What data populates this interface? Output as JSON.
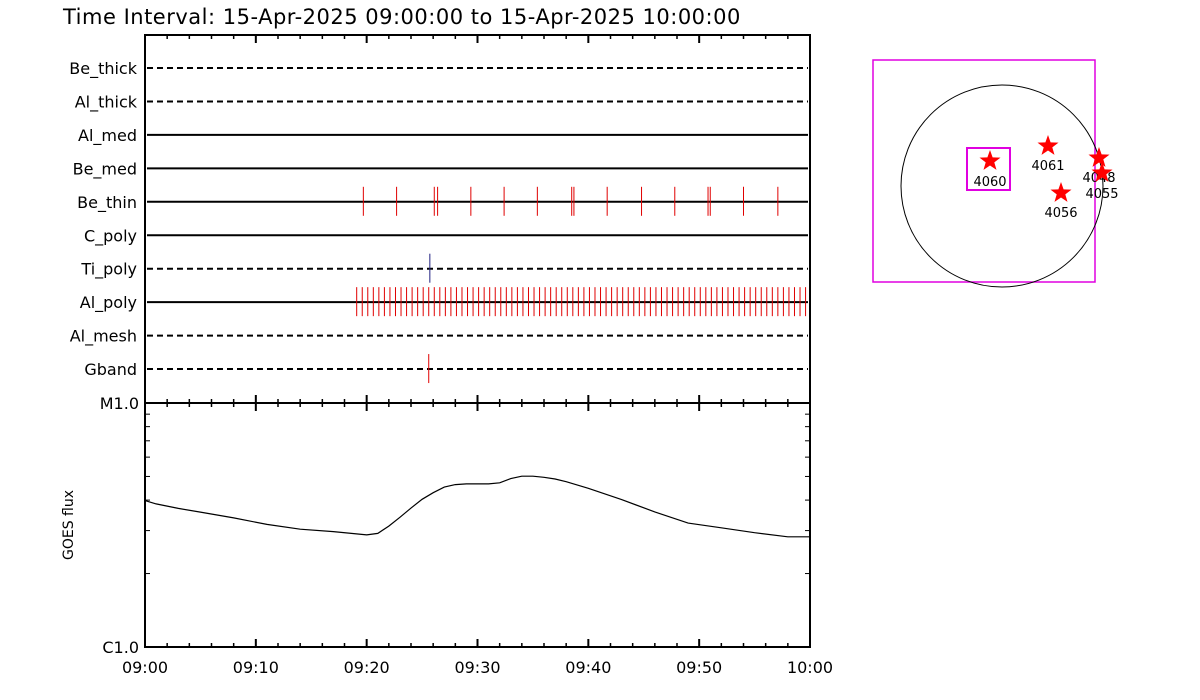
{
  "title": "Time Interval: 15-Apr-2025 09:00:00 to 15-Apr-2025 10:00:00",
  "colors": {
    "event": "#e00000",
    "ti_event": "#202080",
    "fov_box": "#e000e0",
    "star": "#ff0000",
    "axes": "#000000"
  },
  "chart_data": [
    {
      "type": "event-timeline",
      "x_unit": "minutes after 09:00",
      "xlim": [
        0,
        60
      ],
      "filters": [
        {
          "name": "Be_thick",
          "line": "dashed",
          "event_color": "event",
          "events": []
        },
        {
          "name": "Al_thick",
          "line": "dashed",
          "event_color": "event",
          "events": []
        },
        {
          "name": "Al_med",
          "line": "solid",
          "event_color": "event",
          "events": []
        },
        {
          "name": "Be_med",
          "line": "solid",
          "event_color": "event",
          "events": []
        },
        {
          "name": "Be_thin",
          "line": "solid",
          "event_color": "event",
          "events": [
            19.7,
            22.7,
            26.1,
            26.4,
            29.4,
            32.4,
            35.4,
            38.5,
            38.7,
            41.7,
            44.8,
            47.8,
            50.8,
            51.0,
            54.0,
            57.1
          ]
        },
        {
          "name": "C_poly",
          "line": "solid",
          "event_color": "event",
          "events": []
        },
        {
          "name": "Ti_poly",
          "line": "dashed",
          "event_color": "ti_event",
          "events": [
            25.7
          ]
        },
        {
          "name": "Al_poly",
          "line": "solid",
          "event_color": "event",
          "events_range": {
            "start": 19.1,
            "end": 60.0,
            "step": 0.5
          }
        },
        {
          "name": "Al_mesh",
          "line": "dashed",
          "event_color": "event",
          "events": []
        },
        {
          "name": "Gband",
          "line": "dashed",
          "event_color": "event",
          "events": [
            25.6
          ]
        }
      ]
    },
    {
      "type": "line",
      "ylabel": "GOES flux",
      "y_scale": "log",
      "y_tick_labels": [
        "C1.0",
        "M1.0"
      ],
      "ylim": [
        1e-06,
        1e-05
      ],
      "x_tick_labels": [
        "09:00",
        "09:10",
        "09:20",
        "09:30",
        "09:40",
        "09:50",
        "10:00"
      ],
      "xlim": [
        0,
        60
      ],
      "series": [
        {
          "x": [
            0,
            1,
            3,
            5,
            8,
            11,
            14,
            17,
            20,
            21,
            22,
            23,
            24,
            25,
            26,
            27,
            28,
            29,
            30,
            31,
            32,
            33,
            34,
            35,
            36,
            37,
            38,
            40,
            43,
            46,
            49,
            52,
            55,
            58,
            60
          ],
          "y": [
            3.98e-06,
            3.86e-06,
            3.7e-06,
            3.57e-06,
            3.38e-06,
            3.18e-06,
            3.04e-06,
            2.97e-06,
            2.88e-06,
            2.92e-06,
            3.13e-06,
            3.4e-06,
            3.71e-06,
            4.03e-06,
            4.29e-06,
            4.52e-06,
            4.63e-06,
            4.66e-06,
            4.66e-06,
            4.66e-06,
            4.71e-06,
            4.9e-06,
            5.01e-06,
            5.01e-06,
            4.96e-06,
            4.88e-06,
            4.76e-06,
            4.47e-06,
            4.02e-06,
            3.58e-06,
            3.22e-06,
            3.08e-06,
            2.94e-06,
            2.83e-06,
            2.83e-06
          ]
        }
      ]
    },
    {
      "type": "solar-disk-map",
      "regions": [
        {
          "label": "4060"
        },
        {
          "label": "4061"
        },
        {
          "label": "4048"
        },
        {
          "label": "4055"
        },
        {
          "label": "4056"
        }
      ]
    }
  ]
}
